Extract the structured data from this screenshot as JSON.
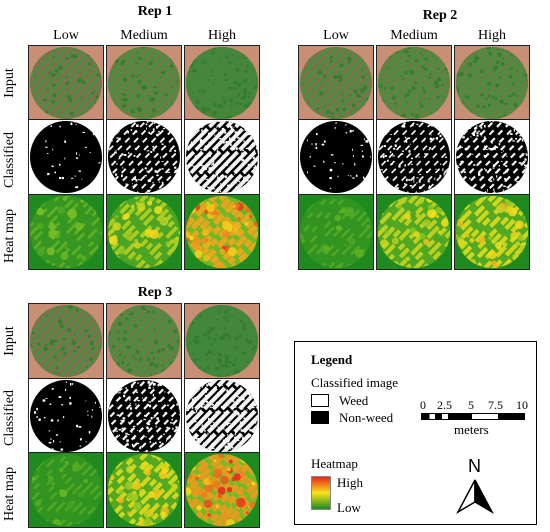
{
  "reps": [
    {
      "title": "Rep 1",
      "columns": [
        "Low",
        "Medium",
        "High"
      ],
      "rows": [
        "Input",
        "Classified",
        "Heat map"
      ]
    },
    {
      "title": "Rep 2",
      "columns": [
        "Low",
        "Medium",
        "High"
      ]
    },
    {
      "title": "Rep 3",
      "columns": [
        "Low",
        "Medium",
        "High"
      ],
      "rows": [
        "Input",
        "Classified",
        "Heat map"
      ]
    }
  ],
  "legend": {
    "title": "Legend",
    "classified_heading": "Classified image",
    "weed_label": "Weed",
    "nonweed_label": "Non-weed",
    "scale_ticks": [
      "0",
      "2.5",
      "5",
      "7.5",
      "10"
    ],
    "scale_unit": "meters",
    "heatmap_heading": "Heatmap",
    "heat_high": "High",
    "heat_low": "Low",
    "north_label": "N"
  },
  "colors": {
    "weed": "#ffffff",
    "nonweed": "#000000",
    "heat_high": "#e8261c",
    "heat_mid": "#f6e21c",
    "heat_low": "#1f8a1f"
  }
}
